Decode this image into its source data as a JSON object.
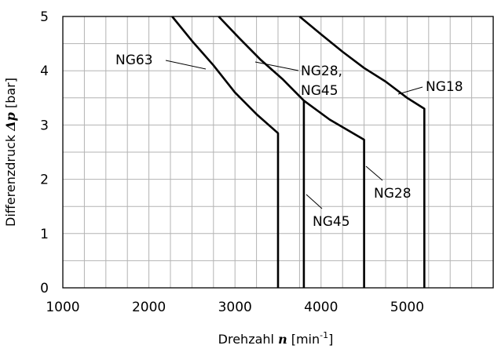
{
  "chart_data": {
    "type": "line",
    "xlabel": {
      "pre": "Drehzahl ",
      "symbol": "n",
      "unit": "[min",
      "exp": "-1",
      "close": "]"
    },
    "ylabel": {
      "pre": "Differenzdruck ",
      "symbol": "Δp",
      "unit": " [bar]"
    },
    "xlim": [
      1000,
      6000
    ],
    "ylim": [
      0,
      5
    ],
    "xticks": [
      1000,
      2000,
      3000,
      4000,
      5000
    ],
    "yticks": [
      0,
      1,
      2,
      3,
      4,
      5
    ],
    "grid": true,
    "series": [
      {
        "name": "NG63",
        "points": [
          [
            2270,
            5.0
          ],
          [
            2500,
            4.55
          ],
          [
            2750,
            4.1
          ],
          [
            3000,
            3.6
          ],
          [
            3250,
            3.2
          ],
          [
            3500,
            2.85
          ],
          [
            3500,
            0
          ]
        ]
      },
      {
        "name": "NG28, NG45",
        "points": [
          [
            2810,
            5.0
          ],
          [
            3050,
            4.6
          ],
          [
            3300,
            4.2
          ],
          [
            3550,
            3.85
          ],
          [
            3800,
            3.45
          ],
          [
            4100,
            3.1
          ],
          [
            4500,
            2.73
          ],
          [
            4500,
            0
          ]
        ]
      },
      {
        "name": "NG45",
        "points": [
          [
            3800,
            3.45
          ],
          [
            3800,
            0
          ]
        ]
      },
      {
        "name": "NG18",
        "points": [
          [
            3750,
            5.0
          ],
          [
            4000,
            4.67
          ],
          [
            4250,
            4.35
          ],
          [
            4500,
            4.05
          ],
          [
            4750,
            3.8
          ],
          [
            5000,
            3.5
          ],
          [
            5200,
            3.3
          ],
          [
            5200,
            0
          ]
        ]
      }
    ],
    "annotations": [
      {
        "id": "ng63",
        "text": "NG63"
      },
      {
        "id": "ng28a",
        "text": "NG28,"
      },
      {
        "id": "ng28b",
        "text": "NG45"
      },
      {
        "id": "ng18",
        "text": "NG18"
      },
      {
        "id": "ng28c",
        "text": "NG28"
      },
      {
        "id": "ng45",
        "text": "NG45"
      }
    ]
  }
}
